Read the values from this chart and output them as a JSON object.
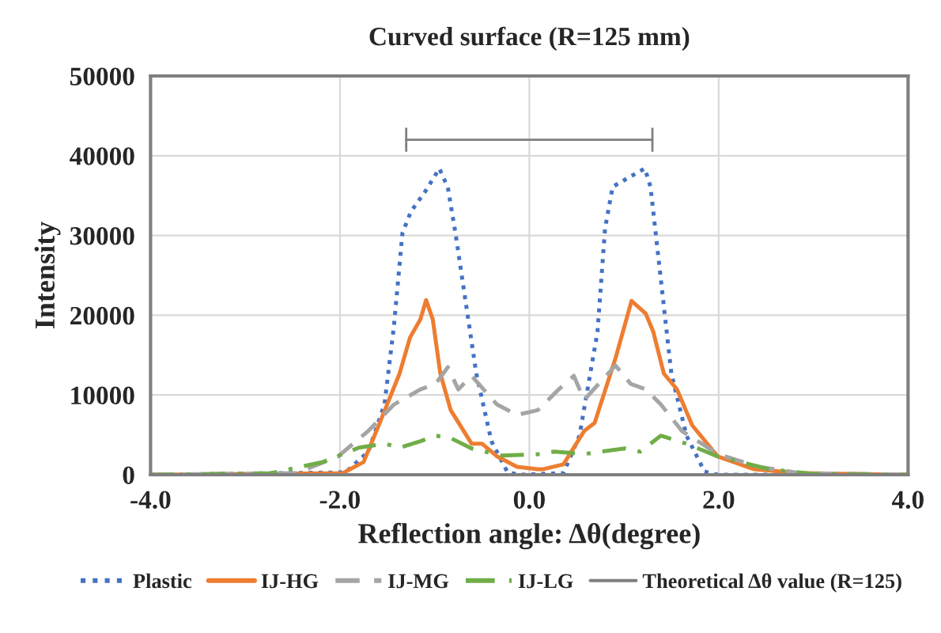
{
  "chart_data": {
    "type": "line",
    "title": "Curved surface (R=125 mm)",
    "xlabel": "Reflection angle: Δθ(degree)",
    "ylabel": "Intensity",
    "xlim": [
      -4,
      4
    ],
    "xticks": [
      {
        "value": -4,
        "label": "-4.0"
      },
      {
        "value": -2,
        "label": "-2.0"
      },
      {
        "value": 0,
        "label": "0.0"
      },
      {
        "value": 2,
        "label": "2.0"
      },
      {
        "value": 4,
        "label": "4.0"
      }
    ],
    "ylim": [
      0,
      50000
    ],
    "yticks": [
      0,
      10000,
      20000,
      30000,
      40000,
      50000
    ],
    "grid": true,
    "legend": "bottom",
    "series": [
      {
        "name": "Plastic",
        "color": "#4472c4",
        "line_style": "dotted",
        "x": [
          -4,
          -1.94,
          -1.7,
          -1.53,
          -1.43,
          -1.34,
          -1.25,
          -1.1,
          -0.95,
          -0.86,
          -0.78,
          -0.56,
          -0.4,
          -0.23,
          -0.1,
          0.36,
          0.53,
          0.72,
          0.8,
          0.88,
          1.07,
          1.22,
          1.28,
          1.39,
          1.5,
          1.66,
          1.85,
          1.99,
          4
        ],
        "values": [
          0,
          300,
          2900,
          8800,
          18600,
          30300,
          33000,
          35500,
          38400,
          36000,
          30300,
          12700,
          4200,
          300,
          0,
          200,
          4900,
          17900,
          30900,
          36100,
          37400,
          38400,
          36100,
          24400,
          12700,
          4900,
          400,
          0,
          0
        ]
      },
      {
        "name": "IJ-HG",
        "color": "#ed7d31",
        "line_style": "solid",
        "x": [
          -4,
          -1.97,
          -1.75,
          -1.59,
          -1.37,
          -1.26,
          -1.15,
          -1.09,
          -1.02,
          -0.94,
          -0.83,
          -0.61,
          -0.5,
          -0.34,
          -0.13,
          0.09,
          0.15,
          0.36,
          0.58,
          0.69,
          0.91,
          1.08,
          1.23,
          1.31,
          1.42,
          1.56,
          1.72,
          1.99,
          2.37,
          2.86,
          4
        ],
        "values": [
          0,
          200,
          1600,
          6200,
          12700,
          17200,
          19500,
          21900,
          19500,
          12700,
          8100,
          3900,
          3900,
          2300,
          1000,
          700,
          700,
          1300,
          5500,
          6500,
          14600,
          21800,
          20200,
          17900,
          12700,
          10700,
          6200,
          2300,
          700,
          200,
          0
        ]
      },
      {
        "name": "IJ-MG",
        "color": "#a5a5a5",
        "line_style": "dashed",
        "x": [
          -4,
          -2.46,
          -2.02,
          -1.7,
          -1.43,
          -1.15,
          -0.99,
          -0.86,
          -0.75,
          -0.61,
          -0.34,
          -0.13,
          0.09,
          0.31,
          0.47,
          0.58,
          0.91,
          1.07,
          1.23,
          1.39,
          1.61,
          1.99,
          2.42,
          2.86,
          4
        ],
        "values": [
          0,
          200,
          2300,
          5500,
          8800,
          10700,
          11400,
          13500,
          10700,
          12400,
          8800,
          7500,
          8100,
          10700,
          12400,
          9400,
          13700,
          11400,
          10700,
          8800,
          5500,
          2600,
          1000,
          200,
          0
        ]
      },
      {
        "name": "IJ-LG",
        "color": "#70ad47",
        "line_style": "dashdot",
        "x": [
          -4,
          -2.73,
          -2.18,
          -1.8,
          -1.53,
          -1.37,
          -1.15,
          -0.99,
          -0.83,
          -0.61,
          -0.29,
          0.15,
          0.26,
          0.58,
          1.01,
          1.17,
          1.39,
          1.66,
          1.99,
          2.53,
          3.0,
          4
        ],
        "values": [
          0,
          200,
          1600,
          3400,
          3900,
          3400,
          4200,
          4900,
          4600,
          3300,
          2400,
          2600,
          2900,
          2600,
          3300,
          2900,
          4900,
          3900,
          2300,
          700,
          100,
          0
        ]
      },
      {
        "name": "Theoretical Δθ value (R=125)",
        "color": "#7f7f7f",
        "line_style": "solid",
        "x": [
          -1.3,
          1.3
        ],
        "values": [
          42000,
          42000
        ],
        "errors": [
          1500,
          1500
        ]
      }
    ]
  }
}
